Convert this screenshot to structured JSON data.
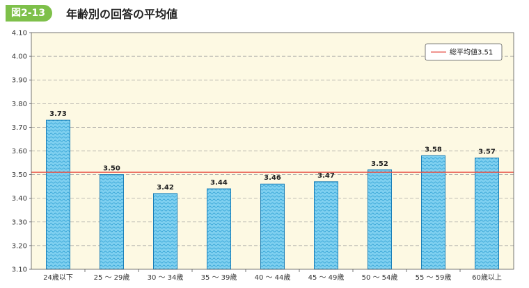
{
  "header": {
    "figure_number": "図2-13",
    "title": "年齢別の回答の平均値"
  },
  "colors": {
    "badge": "#7ec04a",
    "plot_background": "#fdf9e3",
    "bar_fill": "#7fd0f0",
    "bar_pattern": "#3aa7d8",
    "bar_stroke": "#1a7fb8",
    "average_line": "#e8554a",
    "grid": "#999999"
  },
  "chart_data": {
    "type": "bar",
    "categories": [
      "24歳以下",
      "25 ～ 29歳",
      "30 ～ 34歳",
      "35 ～ 39歳",
      "40 ～ 44歳",
      "45 ～ 49歳",
      "50 ～ 54歳",
      "55 ～ 59歳",
      "60歳以上"
    ],
    "values": [
      3.73,
      3.5,
      3.42,
      3.44,
      3.46,
      3.47,
      3.52,
      3.58,
      3.57
    ],
    "value_labels": [
      "3.73",
      "3.50",
      "3.42",
      "3.44",
      "3.46",
      "3.47",
      "3.52",
      "3.58",
      "3.57"
    ],
    "ylim": [
      3.1,
      4.1
    ],
    "yticks": [
      "3.10",
      "3.20",
      "3.30",
      "3.40",
      "3.50",
      "3.60",
      "3.70",
      "3.80",
      "3.90",
      "4.00",
      "4.10"
    ],
    "grid": "dashed horizontal",
    "reference_line": {
      "label": "総平均値3.51",
      "value": 3.51
    },
    "legend_position": "top-right"
  }
}
